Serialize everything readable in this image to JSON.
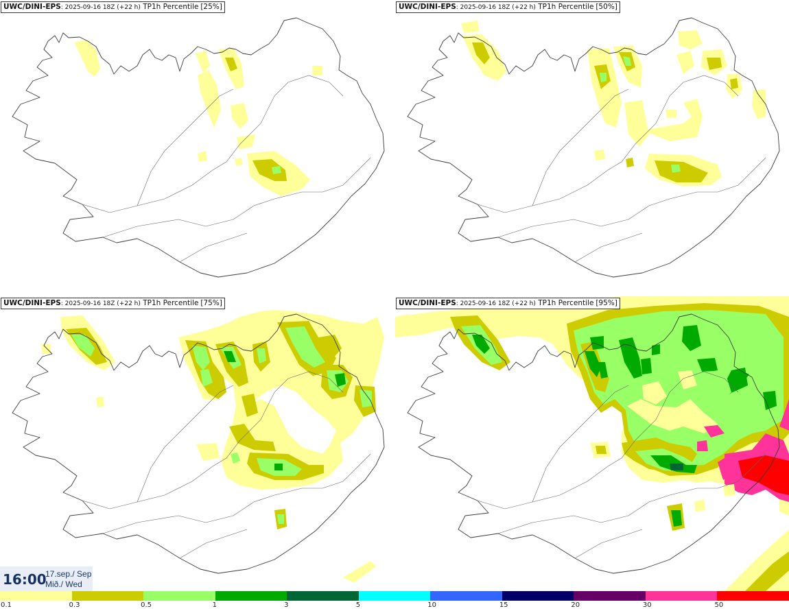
{
  "panels": [
    {
      "model": "UWC/DINI-EPS",
      "run": ": 2025-09-16 18Z (+22 h)",
      "field": " TP1h Percentile",
      "percentile": "[25%]"
    },
    {
      "model": "UWC/DINI-EPS",
      "run": ": 2025-09-16 18Z (+22 h)",
      "field": " TP1h Percentile",
      "percentile": "[50%]"
    },
    {
      "model": "UWC/DINI-EPS",
      "run": ": 2025-09-16 18Z (+22 h)",
      "field": " TP1h Percentile",
      "percentile": "[75%]"
    },
    {
      "model": "UWC/DINI-EPS",
      "run": ": 2025-09-16 18Z (+22 h)",
      "field": " TP1h Percentile",
      "percentile": "[95%]"
    }
  ],
  "valid_time": {
    "time": "16:00",
    "date_line1": "17.sep./ Sep",
    "date_line2": "Mið./ Wed"
  },
  "legend": {
    "colors": [
      "#ffff99",
      "#cccc00",
      "#99ff66",
      "#00aa00",
      "#006633",
      "#00ffff",
      "#3366ff",
      "#000066",
      "#660066",
      "#ff3399",
      "#ff0000"
    ],
    "labels": [
      "0.1",
      "0.3",
      "0.5",
      "1",
      "3",
      "5",
      "10",
      "15",
      "20",
      "30",
      "50"
    ]
  }
}
